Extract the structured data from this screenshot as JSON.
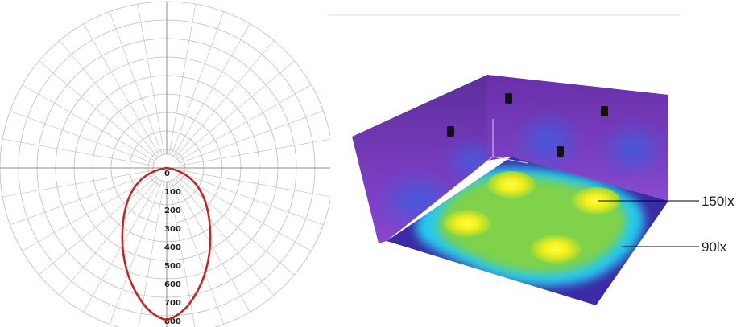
{
  "polar_diagram": {
    "radial_ticks": [
      "0",
      "100",
      "200",
      "300",
      "400",
      "500",
      "600",
      "700",
      "800"
    ],
    "curve_color": "#c0282a"
  },
  "illuminance_view": {
    "callouts": [
      {
        "id": "high",
        "label": "150lx"
      },
      {
        "id": "low",
        "label": "90lx"
      }
    ],
    "colors": {
      "wall": "#6a38b8",
      "floor_edge": "#3a2aa8",
      "cyan": "#27c8f0",
      "green": "#7fd24a",
      "yellow": "#f6f21c"
    }
  }
}
